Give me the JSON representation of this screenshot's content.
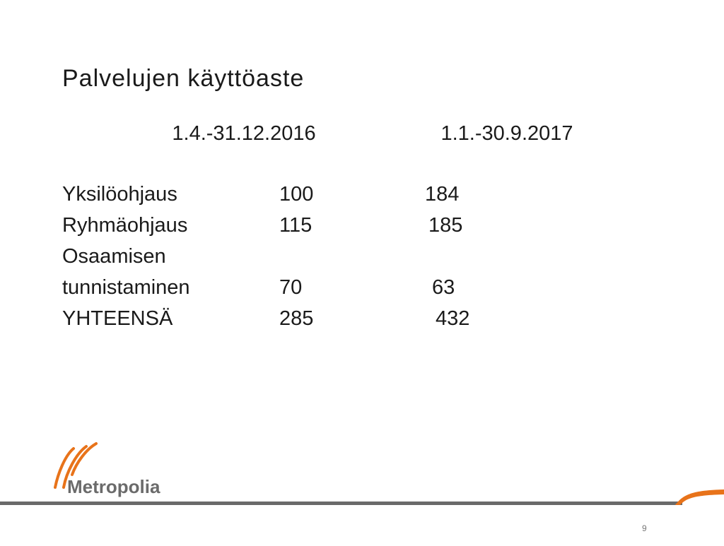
{
  "header": {
    "title": "Palvelujen käyttöaste"
  },
  "table": {
    "columns": [
      "1.4.-31.12.2016",
      "1.1.-30.9.2017"
    ],
    "rows": [
      {
        "label": [
          "Yksilöohjaus"
        ],
        "values": [
          100,
          184
        ]
      },
      {
        "label": [
          "Ryhmäohjaus"
        ],
        "values": [
          115,
          185
        ]
      },
      {
        "label": [
          "Osaamisen",
          "tunnistaminen"
        ],
        "values": [
          70,
          63
        ]
      },
      {
        "label": [
          "YHTEENSÄ"
        ],
        "values": [
          285,
          432
        ]
      }
    ]
  },
  "footer": {
    "logo": "Metropolia",
    "page": "9"
  }
}
